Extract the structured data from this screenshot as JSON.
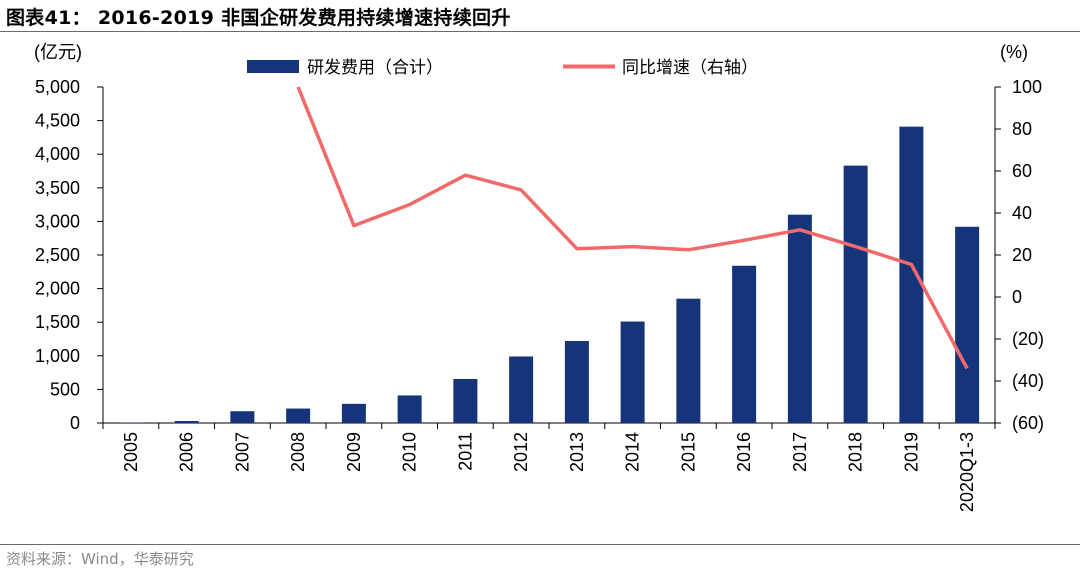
{
  "header": {
    "title": "图表41： 2016-2019 非国企研发费用持续增速持续回升"
  },
  "footer": {
    "source": "资料来源：Wind，华泰研究"
  },
  "colors": {
    "bar": "#15347a",
    "line": "#f06a6a",
    "axis": "#000000",
    "rule": "#6b6b6b"
  },
  "chart_data": {
    "type": "bar",
    "categories": [
      "2005",
      "2006",
      "2007",
      "2008",
      "2009",
      "2010",
      "2011",
      "2012",
      "2013",
      "2014",
      "2015",
      "2016",
      "2017",
      "2018",
      "2019",
      "2020Q1-3"
    ],
    "series": [
      {
        "name": "研发费用（合计）",
        "type": "bar",
        "axis": "left",
        "values": [
          5,
          30,
          175,
          215,
          285,
          410,
          655,
          990,
          1220,
          1510,
          1850,
          2340,
          3100,
          3830,
          4410,
          2920
        ]
      },
      {
        "name": "同比增速（右轴）",
        "type": "line",
        "axis": "right",
        "values": [
          null,
          null,
          null,
          100,
          34,
          44,
          58,
          51,
          23,
          24,
          22.5,
          27,
          32,
          24,
          15.5,
          -34
        ]
      }
    ],
    "y_left": {
      "label": "(亿元)",
      "ylim": [
        0,
        5000
      ],
      "ticks": [
        "0",
        "500",
        "1,000",
        "1,500",
        "2,000",
        "2,500",
        "3,000",
        "3,500",
        "4,000",
        "4,500",
        "5,000"
      ]
    },
    "y_right": {
      "label": "(%)",
      "ylim": [
        -60,
        100
      ],
      "ticks": [
        "(60)",
        "(40)",
        "(20)",
        "0",
        "20",
        "40",
        "60",
        "80",
        "100"
      ]
    },
    "legend_position": "top",
    "grid": false
  }
}
